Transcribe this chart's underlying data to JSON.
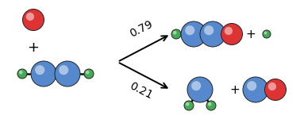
{
  "bg_color": "#ffffff",
  "atom_colors": {
    "O": "#dd3333",
    "C": "#5588cc",
    "H": "#44aa55"
  },
  "branch1_label": "0.79",
  "branch2_label": "0.21",
  "plus_sign": "+",
  "font_size_plus": 13,
  "font_size_branch": 10
}
